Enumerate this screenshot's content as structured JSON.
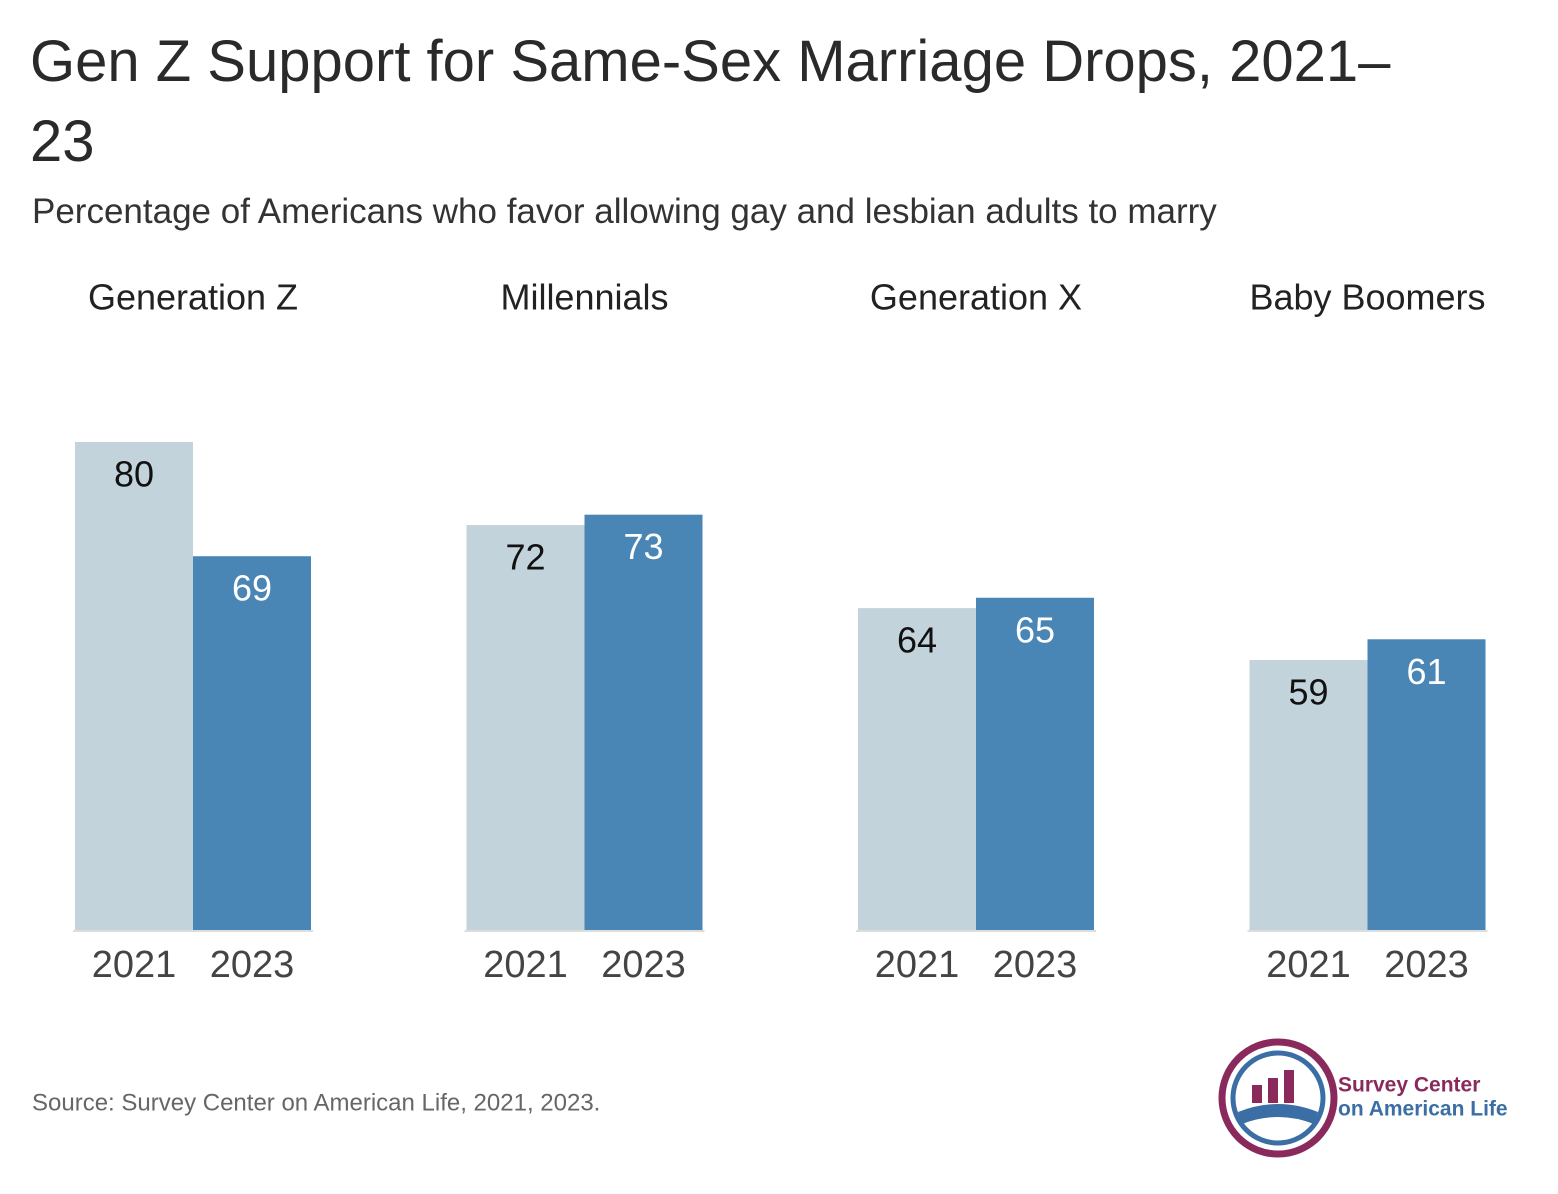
{
  "chart_data": {
    "type": "grouped_bar",
    "title": "Gen Z Support for Same-Sex Marriage Drops, 2021–23",
    "subtitle": "Percentage of Americans who favor allowing gay and lesbian adults to marry",
    "categories": [
      "Generation Z",
      "Millennials",
      "Generation X",
      "Baby Boomers"
    ],
    "series": [
      {
        "name": "2021",
        "color": "#c3d3db",
        "label_color": "#111111",
        "values": [
          80,
          72,
          64,
          59
        ]
      },
      {
        "name": "2023",
        "color": "#4a86b5",
        "label_color": "#ffffff",
        "values": [
          69,
          73,
          65,
          61
        ]
      }
    ],
    "ylim": [
      33,
      80
    ],
    "source": "Source: Survey Center on American Life, 2021, 2023.",
    "logo_text": [
      "Survey Center",
      "on American Life"
    ]
  }
}
